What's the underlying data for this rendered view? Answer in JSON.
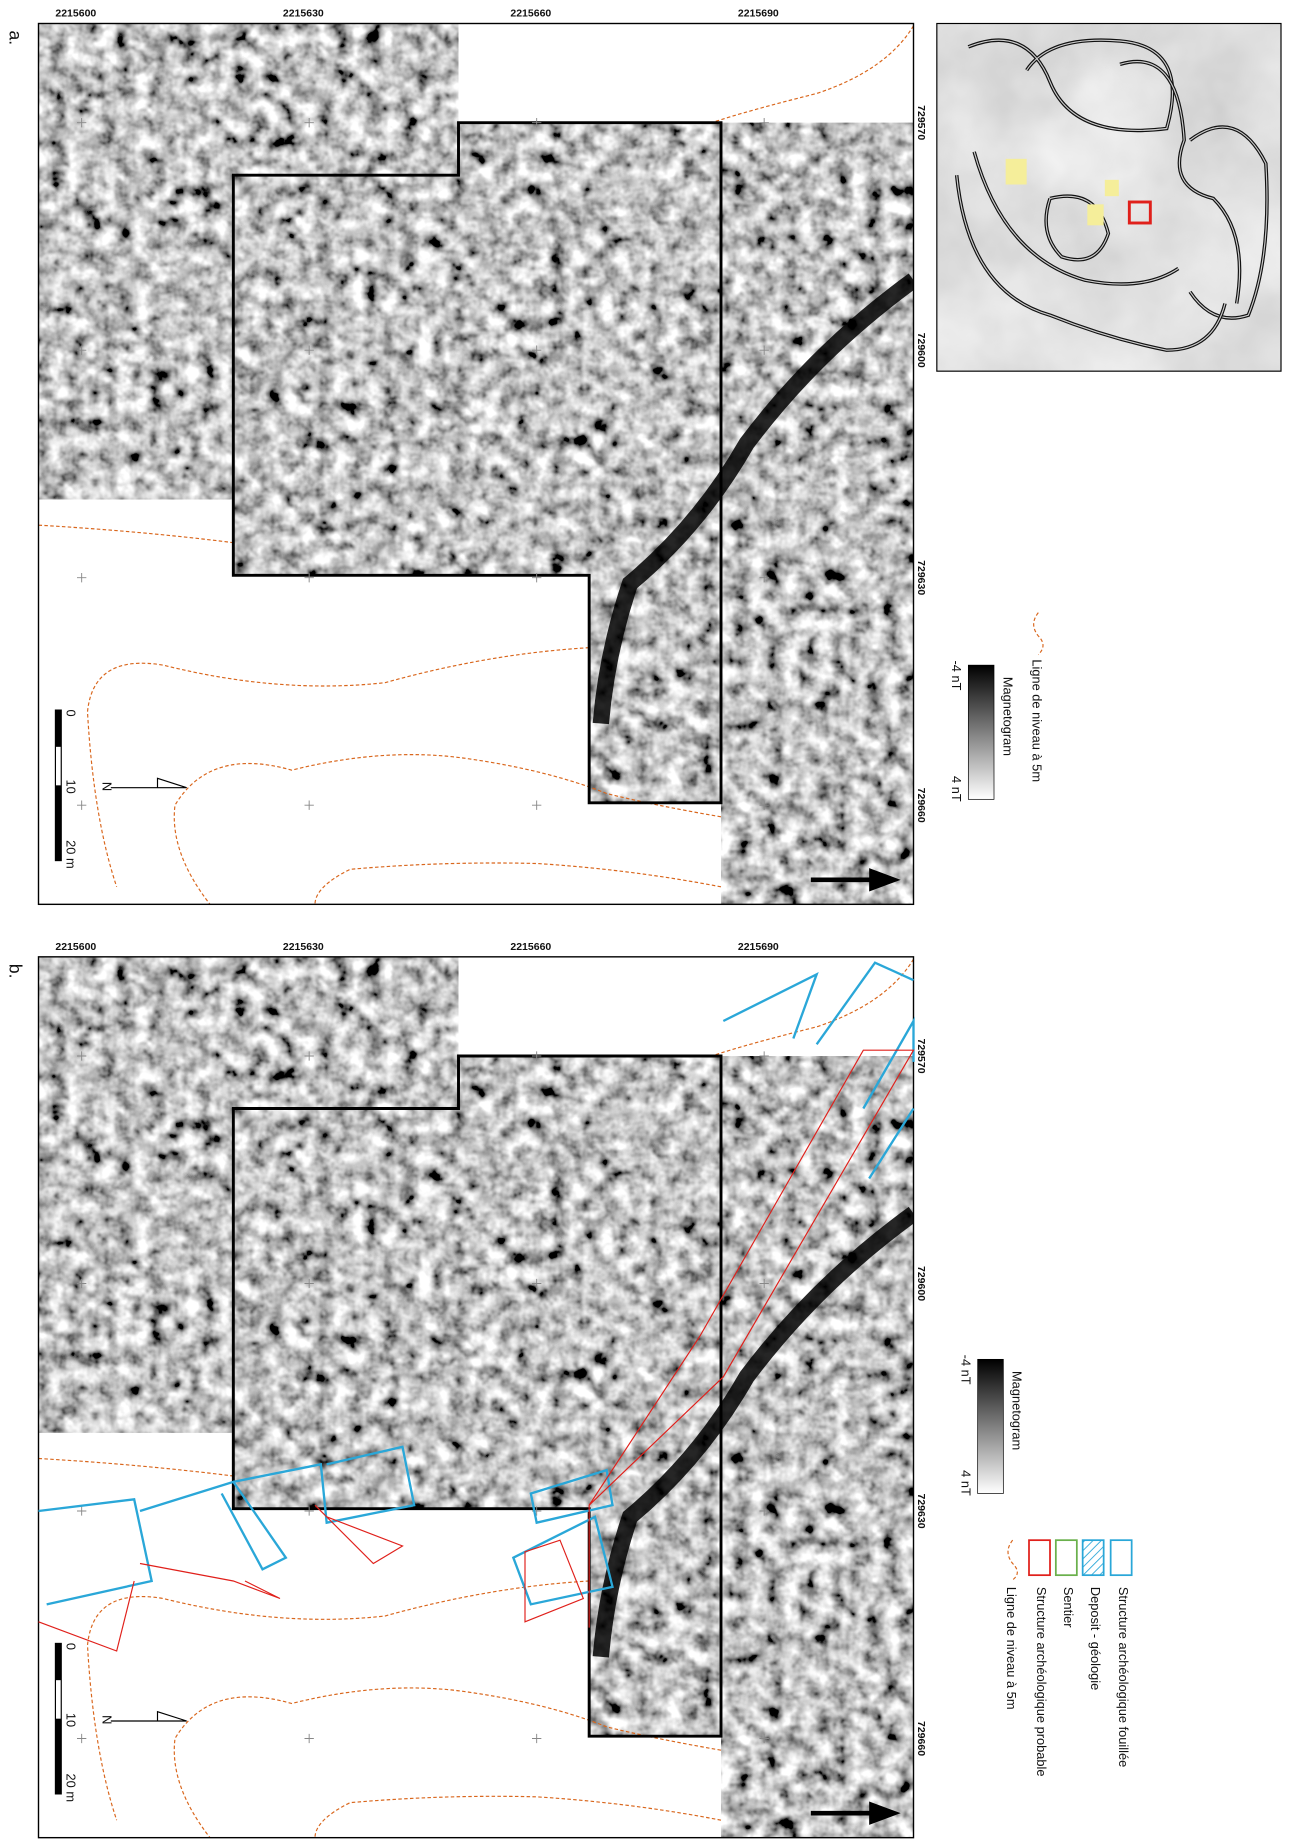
{
  "panels": [
    {
      "label": "a.",
      "x_ticks": [
        "2215600",
        "2215630",
        "2215660",
        "2215690"
      ],
      "y_ticks": [
        "729570",
        "729600",
        "729630",
        "729660"
      ],
      "magnetogram": {
        "title": "Magnetogram",
        "min": "-4 nT",
        "max": "4 nT"
      },
      "scale_bar": [
        "0",
        "10",
        "20 m"
      ],
      "north": "N",
      "legend": [
        "Ligne de niveau à 5m"
      ]
    },
    {
      "label": "b.",
      "x_ticks": [
        "2215600",
        "2215630",
        "2215660",
        "2215690"
      ],
      "y_ticks": [
        "729570",
        "729600",
        "729630",
        "729660"
      ],
      "magnetogram": {
        "title": "Magnetogram",
        "min": "-4 nT",
        "max": "4 nT"
      },
      "scale_bar": [
        "0",
        "10",
        "20 m"
      ],
      "north": "N",
      "legend": [
        "Structure archéologique fouillée",
        "Deposit - géologie",
        "Sentier",
        "Structure archéologique probable",
        "Ligne de niveau à 5m"
      ]
    }
  ]
}
